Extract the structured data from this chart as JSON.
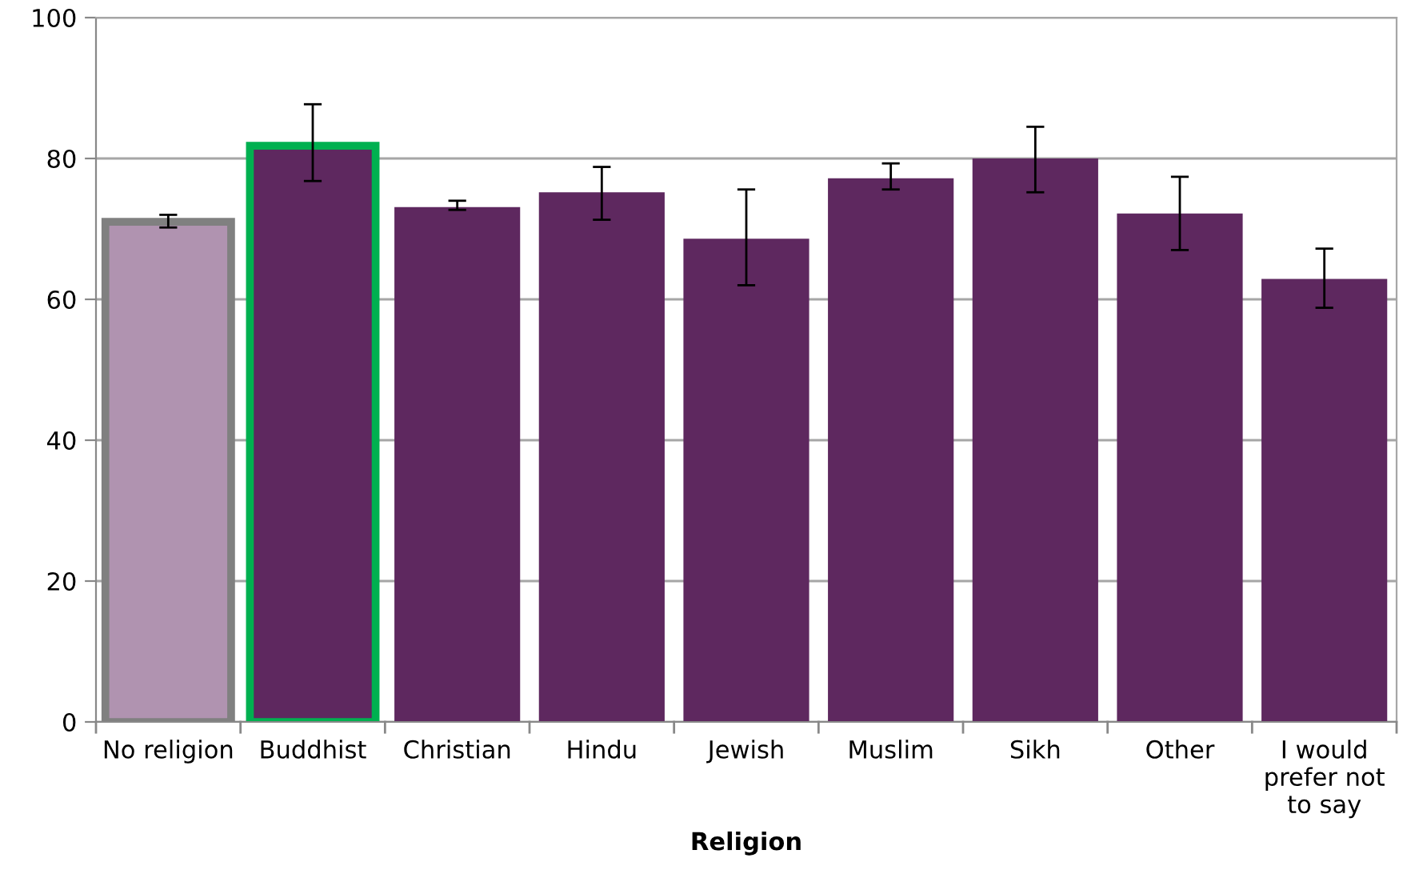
{
  "chart_data": {
    "type": "bar",
    "xlabel": "Religion",
    "categories": [
      "No religion",
      "Buddhist",
      "Christian",
      "Hindu",
      "Jewish",
      "Muslim",
      "Sikh",
      "Other",
      "I would\nprefer not\nto say"
    ],
    "values": [
      71,
      81.8,
      73.1,
      75.2,
      68.6,
      77.2,
      80,
      72.2,
      62.9
    ],
    "errors": [
      [
        70.2,
        72
      ],
      [
        76.8,
        87.7
      ],
      [
        72.7,
        74
      ],
      [
        71.3,
        78.8
      ],
      [
        62,
        75.6
      ],
      [
        75.6,
        79.3
      ],
      [
        75.2,
        84.5
      ],
      [
        67,
        77.4
      ],
      [
        58.8,
        67.2
      ]
    ],
    "colors": [
      "#b093b0",
      "#5e285f",
      "#5e285f",
      "#5e285f",
      "#5e285f",
      "#5e285f",
      "#5e285f",
      "#5e285f",
      "#5e285f"
    ],
    "ylim": [
      0,
      100
    ],
    "yticks": [
      0,
      20,
      40,
      60,
      80,
      100
    ],
    "grid": "y"
  }
}
